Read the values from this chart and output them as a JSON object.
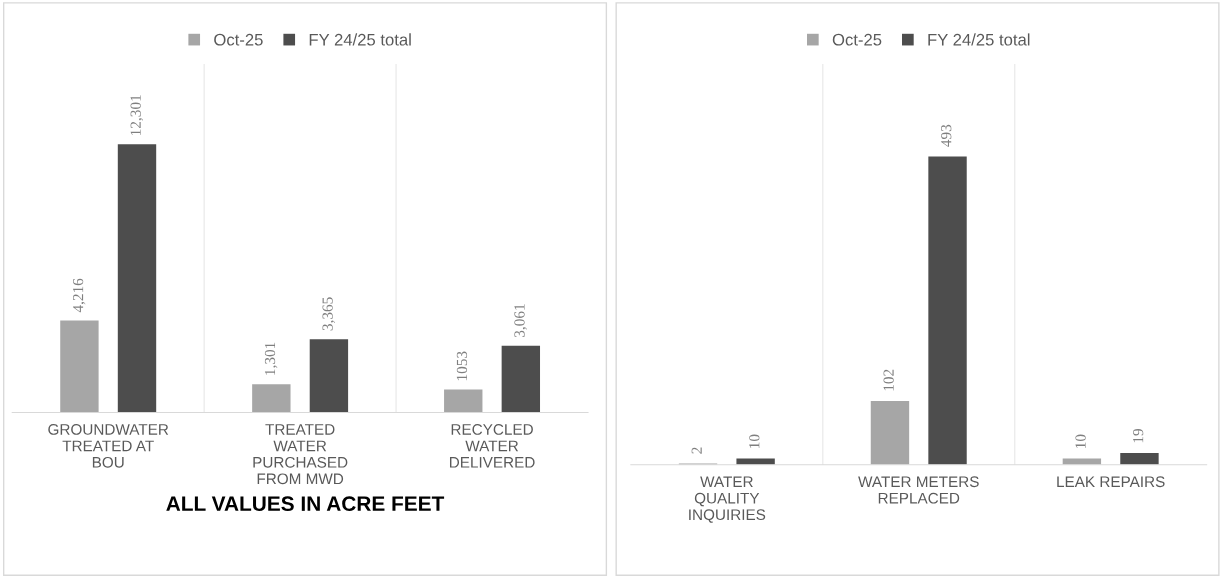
{
  "chart_data": [
    {
      "type": "bar",
      "categories": [
        "GROUNDWATER\nTREATED AT\nBOU",
        "TREATED\nWATER\nPURCHASED\nFROM MWD",
        "RECYCLED\nWATER\nDELIVERED"
      ],
      "series": [
        {
          "name": "Oct-25",
          "color": "#a6a6a6",
          "values": [
            4216,
            1301,
            1053
          ],
          "value_labels": [
            "4,216",
            "1,301",
            "1053"
          ]
        },
        {
          "name": "FY 24/25 total",
          "color": "#4d4d4d",
          "values": [
            12301,
            3365,
            3061
          ],
          "value_labels": [
            "12,301",
            "3,365",
            "3,061"
          ]
        }
      ],
      "legend": "top",
      "grid": "x",
      "annotations": [
        "ALL VALUES IN ACRE FEET"
      ]
    },
    {
      "type": "bar",
      "categories": [
        "WATER\nQUALITY\nINQUIRIES",
        "WATER METERS\nREPLACED",
        "LEAK REPAIRS"
      ],
      "series": [
        {
          "name": "Oct-25",
          "color": "#a6a6a6",
          "values": [
            2,
            102,
            10
          ],
          "value_labels": [
            "2",
            "102",
            "10"
          ]
        },
        {
          "name": "FY 24/25 total",
          "color": "#4d4d4d",
          "values": [
            10,
            493,
            19
          ],
          "value_labels": [
            "10",
            "493",
            "19"
          ]
        }
      ],
      "legend": "top",
      "grid": "x"
    }
  ]
}
